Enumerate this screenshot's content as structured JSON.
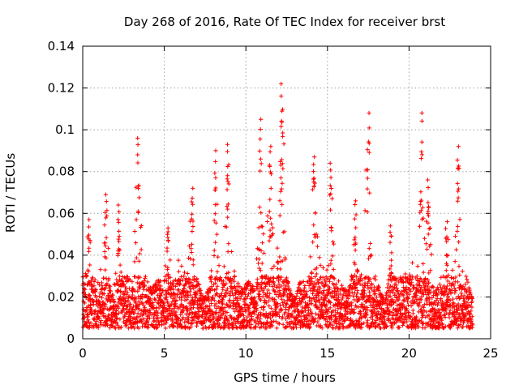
{
  "chart_data": {
    "type": "scatter",
    "title": "Day 268 of 2016, Rate Of TEC Index for receiver brst",
    "xlabel": "GPS time / hours",
    "ylabel": "ROTI / TECUs",
    "xlim": [
      0,
      25
    ],
    "ylim": [
      0,
      0.14
    ],
    "xticks": [
      0,
      5,
      10,
      15,
      20,
      25
    ],
    "yticks": [
      0,
      0.02,
      0.04,
      0.06,
      0.08,
      0.1,
      0.12,
      0.14
    ],
    "xtick_labels": [
      "0",
      "5",
      "10",
      "15",
      "20",
      "25"
    ],
    "ytick_labels": [
      "0",
      "0.02",
      "0.04",
      "0.06",
      "0.08",
      "0.1",
      "0.12",
      "0.14"
    ],
    "grid": true,
    "marker": "+",
    "series_color": "#ff0000",
    "x_range_of_points": [
      0,
      23.9
    ],
    "baseline_band": [
      0.005,
      0.03
    ],
    "peaks": [
      {
        "x": 0.4,
        "y": 0.057
      },
      {
        "x": 1.4,
        "y": 0.069
      },
      {
        "x": 2.2,
        "y": 0.064
      },
      {
        "x": 3.4,
        "y": 0.096
      },
      {
        "x": 5.2,
        "y": 0.053
      },
      {
        "x": 6.7,
        "y": 0.072
      },
      {
        "x": 8.1,
        "y": 0.09
      },
      {
        "x": 8.9,
        "y": 0.093
      },
      {
        "x": 10.9,
        "y": 0.105
      },
      {
        "x": 11.5,
        "y": 0.092
      },
      {
        "x": 12.2,
        "y": 0.122
      },
      {
        "x": 14.2,
        "y": 0.087
      },
      {
        "x": 15.2,
        "y": 0.084
      },
      {
        "x": 16.7,
        "y": 0.066
      },
      {
        "x": 17.5,
        "y": 0.108
      },
      {
        "x": 18.9,
        "y": 0.054
      },
      {
        "x": 20.8,
        "y": 0.108
      },
      {
        "x": 21.2,
        "y": 0.076
      },
      {
        "x": 22.3,
        "y": 0.056
      },
      {
        "x": 23.0,
        "y": 0.092
      }
    ]
  }
}
